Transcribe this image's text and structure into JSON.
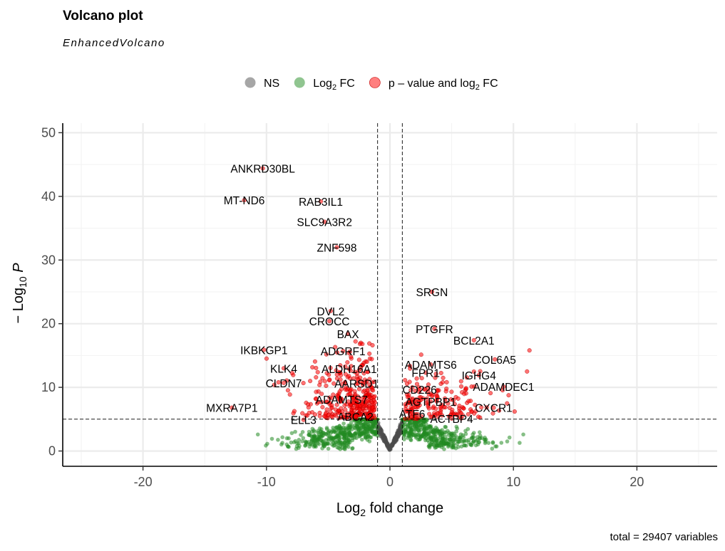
{
  "title": "Volcano plot",
  "subtitle": "EnhancedVolcano",
  "caption": "total = 29407 variables",
  "chart_data": {
    "type": "scatter",
    "xlabel": "Log2 fold change",
    "ylabel": "-Log10 P",
    "xlim": [
      -26.5,
      26.5
    ],
    "ylim": [
      -2.4,
      51.5
    ],
    "x_ticks": [
      -20,
      -10,
      0,
      10,
      20
    ],
    "y_ticks": [
      0,
      10,
      20,
      30,
      40,
      50
    ],
    "fc_cutoff": 1,
    "p_cutoff_log10": 5,
    "grid": true,
    "legend_position": "top",
    "legend": [
      {
        "name": "NS",
        "color": "#4d4d4d"
      },
      {
        "name": "Log",
        "sub": "2",
        "suffix": " FC",
        "color": "#228b22"
      },
      {
        "name": "p – value and log",
        "sub": "2",
        "suffix": " FC",
        "color": "#ff0000"
      }
    ],
    "labeled_points": [
      {
        "gene": "ANKRD30BL",
        "x": -10.3,
        "y": 44.4
      },
      {
        "gene": "MT-ND6",
        "x": -11.8,
        "y": 39.4
      },
      {
        "gene": "RAB3IL1",
        "x": -5.6,
        "y": 39.2
      },
      {
        "gene": "SLC9A3R2",
        "x": -5.3,
        "y": 36.0
      },
      {
        "gene": "ZNF598",
        "x": -4.3,
        "y": 32.0
      },
      {
        "gene": "SRGN",
        "x": 3.4,
        "y": 25.0
      },
      {
        "gene": "DVL2",
        "x": -4.8,
        "y": 22.0
      },
      {
        "gene": "CROCC",
        "x": -4.9,
        "y": 20.4
      },
      {
        "gene": "PTGFR",
        "x": 3.6,
        "y": 19.2
      },
      {
        "gene": "BAX",
        "x": -3.4,
        "y": 18.4
      },
      {
        "gene": "BCL2A1",
        "x": 6.8,
        "y": 17.4
      },
      {
        "gene": "IKBKGP1",
        "x": -10.2,
        "y": 15.9
      },
      {
        "gene": "ADGRF1",
        "x": -3.8,
        "y": 15.7
      },
      {
        "gene": "COL6A5",
        "x": 8.5,
        "y": 14.4
      },
      {
        "gene": "ADAMTS6",
        "x": 3.3,
        "y": 13.6
      },
      {
        "gene": "KLK4",
        "x": -8.6,
        "y": 13.0
      },
      {
        "gene": "ALDH16A1",
        "x": -3.3,
        "y": 12.9
      },
      {
        "gene": "FPR1",
        "x": 2.9,
        "y": 12.3
      },
      {
        "gene": "IGHG4",
        "x": 7.2,
        "y": 11.9
      },
      {
        "gene": "CLDN7",
        "x": -8.6,
        "y": 10.7
      },
      {
        "gene": "AARSD1",
        "x": -2.7,
        "y": 10.6
      },
      {
        "gene": "ADAMDEC1",
        "x": 9.2,
        "y": 10.1
      },
      {
        "gene": "CD226",
        "x": 2.4,
        "y": 9.7
      },
      {
        "gene": "ADAMTS7",
        "x": -3.9,
        "y": 8.1
      },
      {
        "gene": "AGTPBP1",
        "x": 3.3,
        "y": 7.8
      },
      {
        "gene": "MXRA7P1",
        "x": -12.8,
        "y": 6.8
      },
      {
        "gene": "CXCR1",
        "x": 8.4,
        "y": 6.8
      },
      {
        "gene": "ATF6",
        "x": 1.8,
        "y": 5.9
      },
      {
        "gene": "ABCA2",
        "x": -2.8,
        "y": 5.4
      },
      {
        "gene": "ELL3",
        "x": -7.0,
        "y": 4.9
      },
      {
        "gene": "ACTBP4",
        "x": 5.0,
        "y": 5.1
      }
    ]
  }
}
